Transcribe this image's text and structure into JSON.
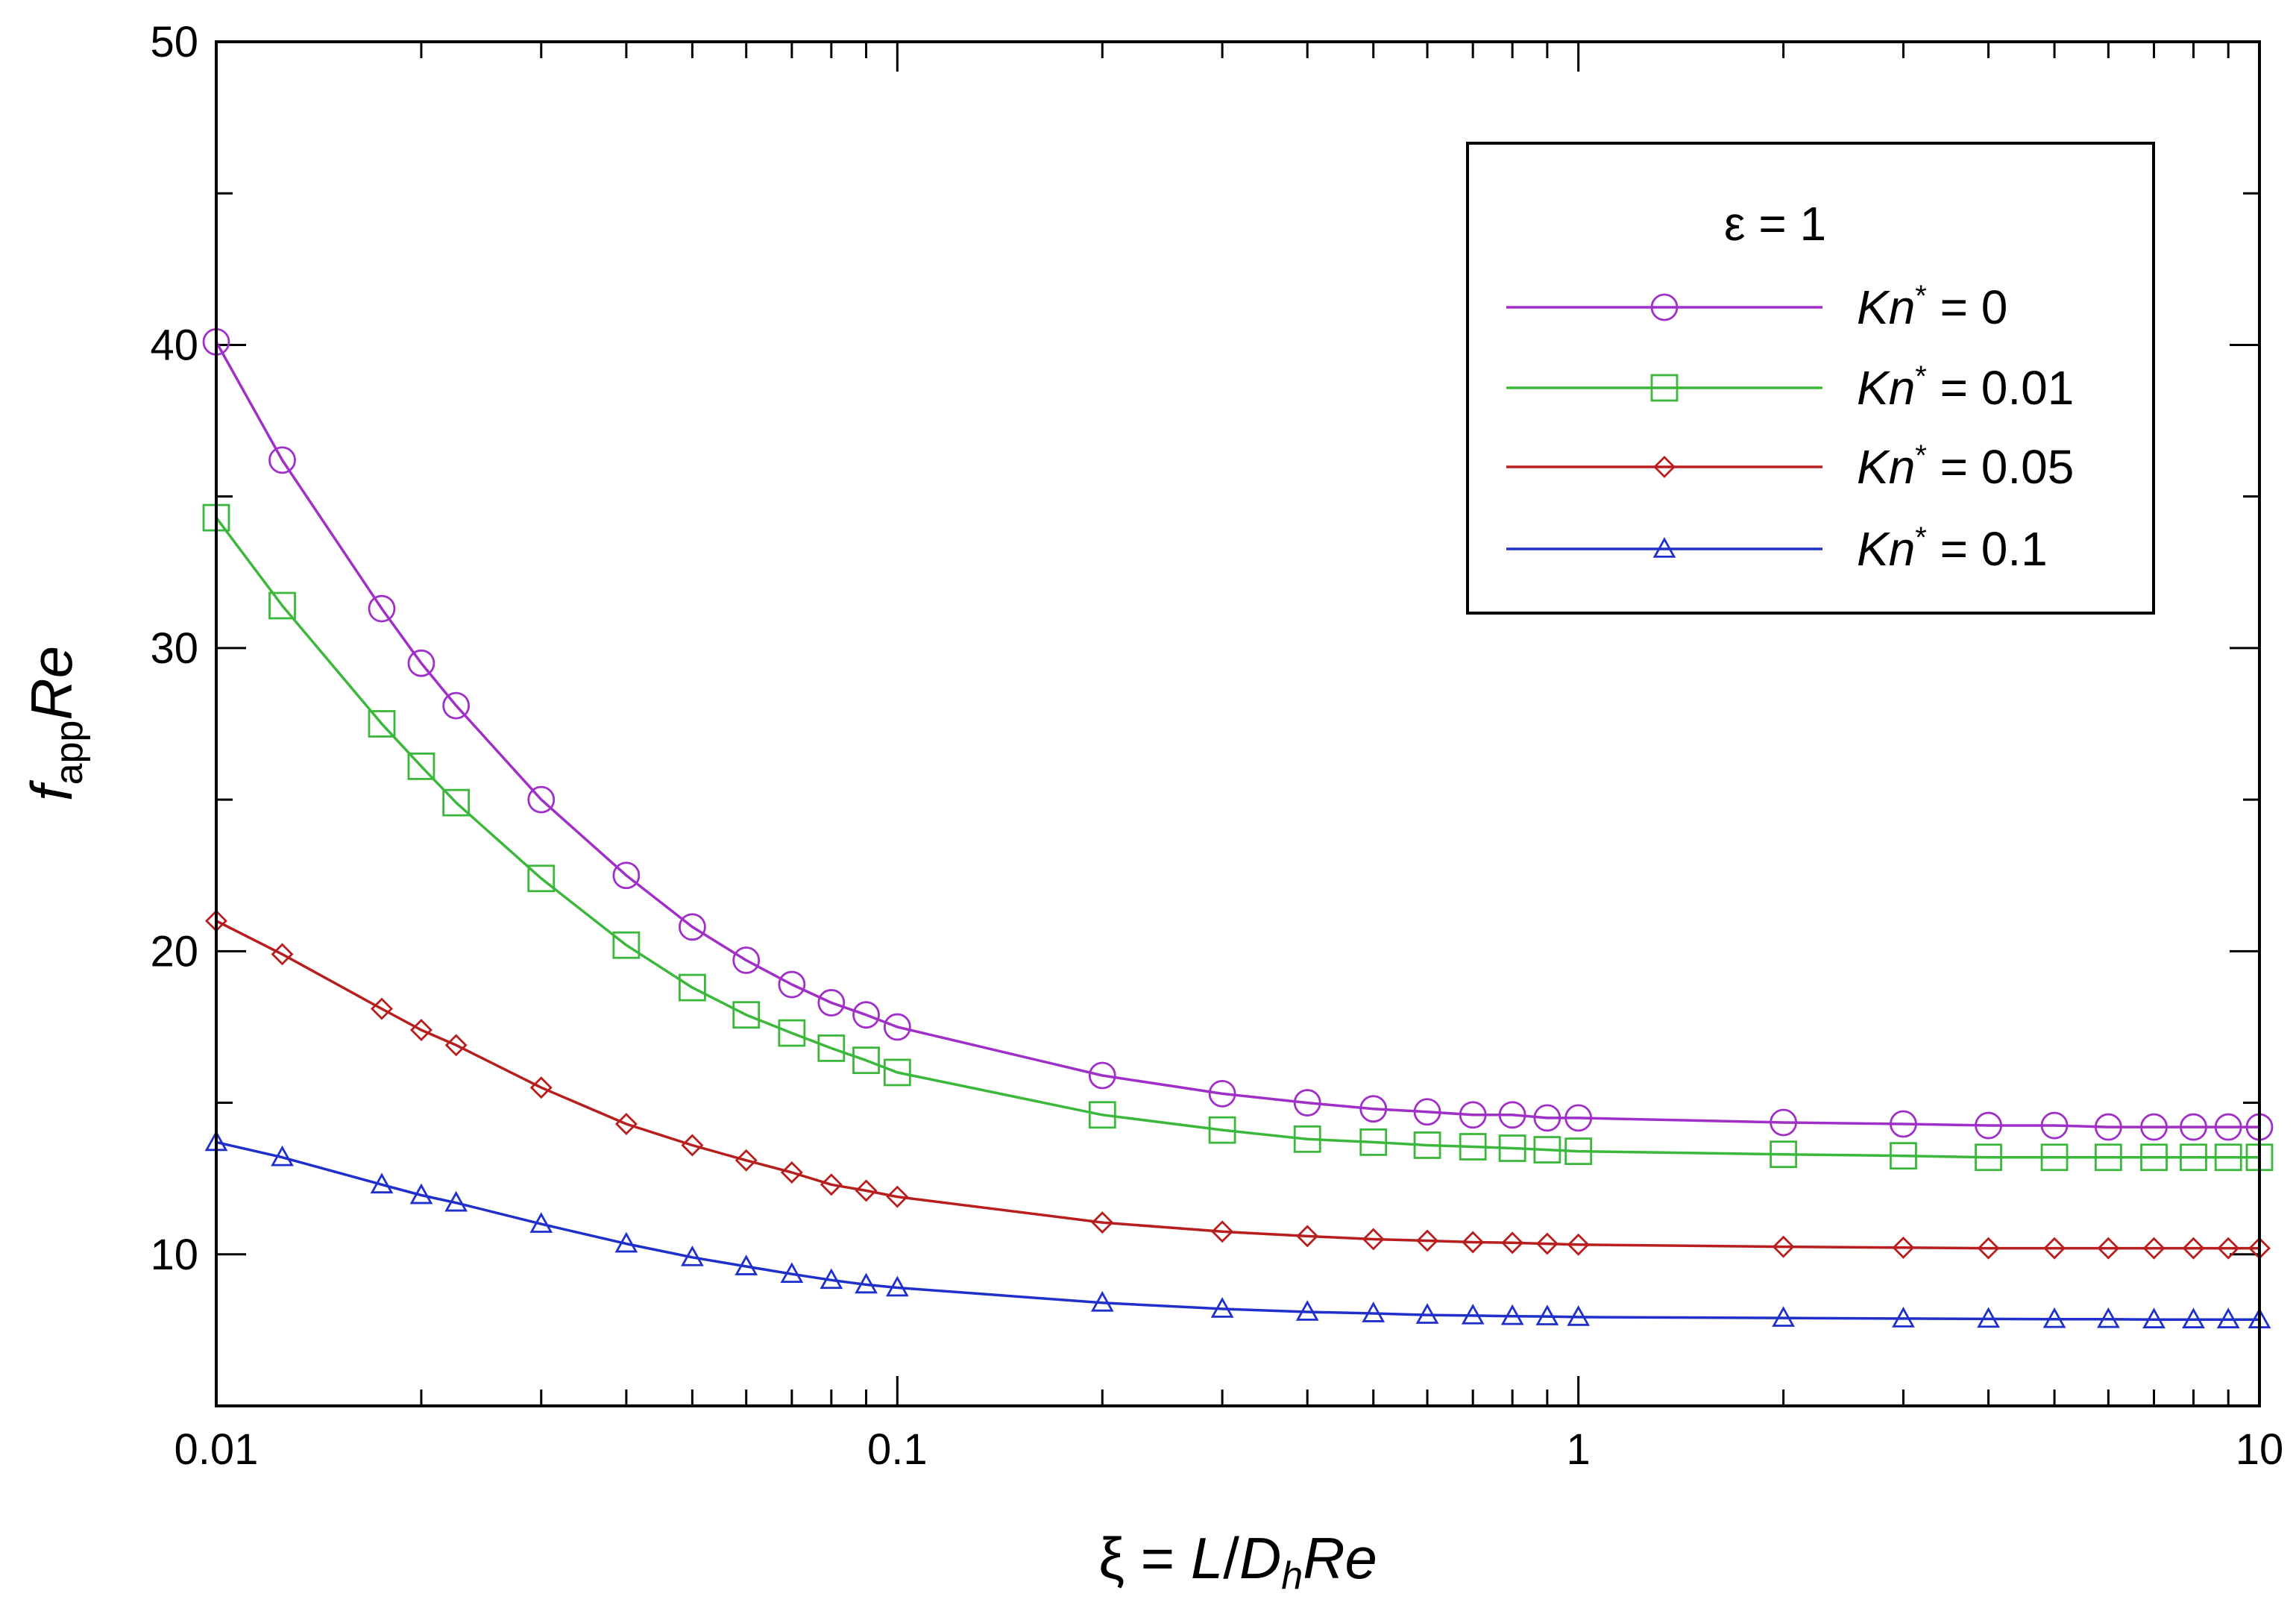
{
  "chart_data": {
    "type": "line",
    "x_scale": "log",
    "xlim": [
      0.01,
      10
    ],
    "ylim": [
      5,
      50
    ],
    "x_ticks": [
      0.01,
      0.1,
      1,
      10
    ],
    "x_tick_labels": [
      "0.01",
      "0.1",
      "1",
      "10"
    ],
    "y_ticks": [
      10,
      20,
      30,
      40,
      50
    ],
    "y_tick_labels": [
      "10",
      "20",
      "30",
      "40",
      "50"
    ],
    "xlabel": {
      "prefix": "ξ = ",
      "L": "L",
      "slash": "/",
      "D": "D",
      "sub": "h",
      "Re": "Re"
    },
    "ylabel": {
      "f": "f",
      "sub": "app",
      "Re": "Re"
    },
    "legend": {
      "title": "ε = 1",
      "kn": "Kn",
      "star": "*",
      "position": "top-right"
    },
    "x": [
      0.01,
      0.0125,
      0.0175,
      0.02,
      0.0225,
      0.03,
      0.04,
      0.05,
      0.06,
      0.07,
      0.08,
      0.09,
      0.1,
      0.2,
      0.3,
      0.4,
      0.5,
      0.6,
      0.7,
      0.8,
      0.9,
      1,
      2,
      3,
      4,
      5,
      6,
      7,
      8,
      9,
      10
    ],
    "series": [
      {
        "name": "= 0",
        "color": "#a02fc8",
        "marker": "circle",
        "values": [
          40.1,
          36.2,
          31.3,
          29.5,
          28.1,
          25.0,
          22.5,
          20.8,
          19.7,
          18.9,
          18.3,
          17.9,
          17.5,
          15.9,
          15.3,
          15.0,
          14.8,
          14.7,
          14.6,
          14.6,
          14.5,
          14.5,
          14.35,
          14.3,
          14.25,
          14.25,
          14.2,
          14.2,
          14.2,
          14.2,
          14.2
        ]
      },
      {
        "name": "= 0.01",
        "color": "#3bb83b",
        "marker": "square",
        "values": [
          34.3,
          31.4,
          27.5,
          26.1,
          24.9,
          22.4,
          20.2,
          18.8,
          17.9,
          17.3,
          16.8,
          16.4,
          16.0,
          14.6,
          14.1,
          13.8,
          13.7,
          13.6,
          13.55,
          13.5,
          13.45,
          13.4,
          13.3,
          13.25,
          13.2,
          13.2,
          13.2,
          13.2,
          13.2,
          13.2,
          13.2
        ]
      },
      {
        "name": "= 0.05",
        "color": "#b81e1e",
        "marker": "diamond",
        "values": [
          21.0,
          19.9,
          18.1,
          17.4,
          16.9,
          15.5,
          14.3,
          13.6,
          13.1,
          12.7,
          12.3,
          12.1,
          11.9,
          11.05,
          10.75,
          10.6,
          10.5,
          10.45,
          10.4,
          10.38,
          10.35,
          10.32,
          10.25,
          10.22,
          10.2,
          10.2,
          10.2,
          10.2,
          10.2,
          10.2,
          10.2
        ]
      },
      {
        "name": "= 0.1",
        "color": "#1f2fcc",
        "marker": "triangle",
        "values": [
          13.7,
          13.2,
          12.3,
          11.95,
          11.7,
          11.0,
          10.35,
          9.9,
          9.6,
          9.35,
          9.15,
          9.0,
          8.9,
          8.4,
          8.2,
          8.1,
          8.05,
          8.0,
          7.98,
          7.96,
          7.95,
          7.93,
          7.9,
          7.88,
          7.87,
          7.86,
          7.86,
          7.85,
          7.85,
          7.85,
          7.85
        ]
      }
    ]
  }
}
